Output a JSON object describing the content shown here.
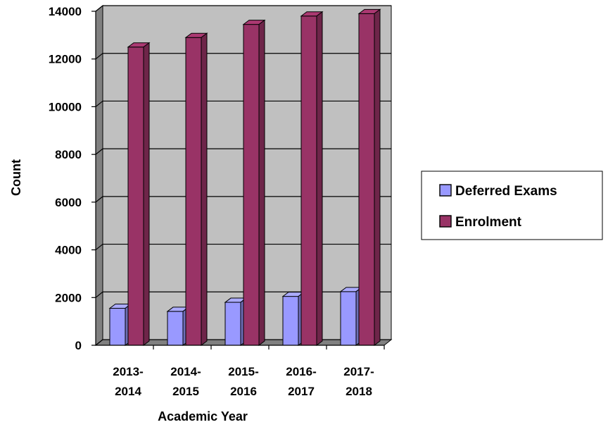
{
  "chart_data": {
    "type": "bar",
    "categories": [
      [
        "2013-",
        "2014"
      ],
      [
        "2014-",
        "2015"
      ],
      [
        "2015-",
        "2016"
      ],
      [
        "2016-",
        "2017"
      ],
      [
        "2017-",
        "2018"
      ]
    ],
    "series": [
      {
        "name": "Deferred Exams",
        "values": [
          1550,
          1420,
          1800,
          2050,
          2250
        ],
        "color": "#9999ff"
      },
      {
        "name": "Enrolment",
        "values": [
          12500,
          12900,
          13450,
          13800,
          13900
        ],
        "color": "#993366"
      }
    ],
    "yticks": [
      "0",
      "2000",
      "4000",
      "6000",
      "8000",
      "10000",
      "12000",
      "14000"
    ],
    "ylim": [
      0,
      14000
    ],
    "xlabel": "Academic Year",
    "ylabel": "Count",
    "legend_position": "right",
    "grid": true,
    "style": "3d-clustered-column",
    "colors": {
      "wall": "#c0c0c0",
      "wall_side": "#808080",
      "gridline": "#000000"
    }
  }
}
